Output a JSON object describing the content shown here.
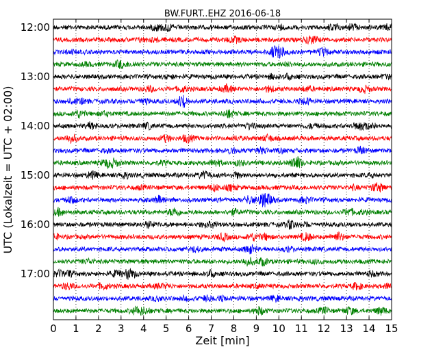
{
  "chart_data": {
    "type": "line",
    "title": "BW.FURT..EHZ 2016-06-18",
    "xlabel": "Zeit  [min]",
    "ylabel": "UTC (Lokalzeit = UTC + 02:00)",
    "xlim": [
      0,
      15
    ],
    "x_ticks": [
      "0",
      "1",
      "2",
      "3",
      "4",
      "5",
      "6",
      "7",
      "8",
      "9",
      "10",
      "11",
      "12",
      "13",
      "14",
      "15"
    ],
    "y_ticks": [
      "12:00",
      "13:00",
      "14:00",
      "15:00",
      "16:00",
      "17:00"
    ],
    "grid": "vertical dotted",
    "trace_interval_minutes": 15,
    "trace_count": 24,
    "colors": [
      "#000000",
      "#ff0000",
      "#0000ff",
      "#008000"
    ]
  }
}
